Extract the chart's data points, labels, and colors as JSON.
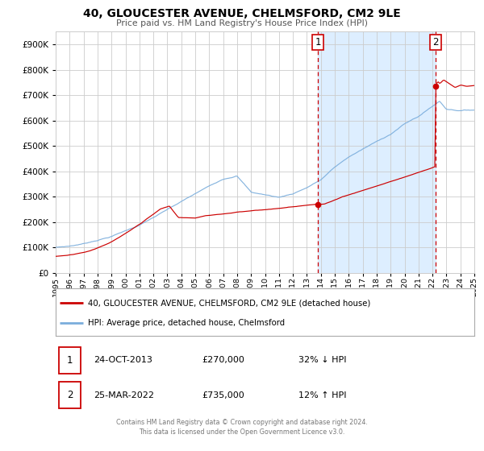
{
  "title": "40, GLOUCESTER AVENUE, CHELMSFORD, CM2 9LE",
  "subtitle": "Price paid vs. HM Land Registry's House Price Index (HPI)",
  "red_label": "40, GLOUCESTER AVENUE, CHELMSFORD, CM2 9LE (detached house)",
  "blue_label": "HPI: Average price, detached house, Chelmsford",
  "annotation1_num": "1",
  "annotation1_date": "24-OCT-2013",
  "annotation1_price": "£270,000",
  "annotation1_hpi": "32% ↓ HPI",
  "annotation2_num": "2",
  "annotation2_date": "25-MAR-2022",
  "annotation2_price": "£735,000",
  "annotation2_hpi": "12% ↑ HPI",
  "transaction1_year": 2013.81,
  "transaction1_value": 270000,
  "transaction2_year": 2022.23,
  "transaction2_value": 735000,
  "ylim_max": 950000,
  "xlim_min": 1995,
  "xlim_max": 2025,
  "footer_line1": "Contains HM Land Registry data © Crown copyright and database right 2024.",
  "footer_line2": "This data is licensed under the Open Government Licence v3.0.",
  "grid_color": "#cccccc",
  "red_color": "#cc0000",
  "blue_color": "#7aaddc",
  "highlight_fill": "#ddeeff",
  "background_color": "#ffffff",
  "legend_border_color": "#aaaaaa"
}
